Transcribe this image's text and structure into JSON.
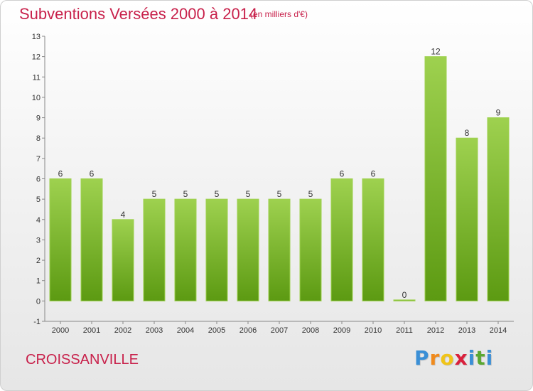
{
  "header": {
    "title": "Subventions Versées 2000 à 2014",
    "unit_note": "(en milliers d'€)"
  },
  "footer": {
    "commune": "CROISSANVILLE",
    "logo_letters": [
      "P",
      "r",
      "o",
      "x",
      "i",
      "t",
      "i"
    ]
  },
  "colors": {
    "title": "#c8214b",
    "bar_top": "#9ed14f",
    "bar_bottom": "#5c9a12",
    "logo": [
      "#3a8fd6",
      "#f08a1c",
      "#f0c419",
      "#d9203c",
      "#3a8fd6",
      "#5aa832",
      "#3a8fd6"
    ]
  },
  "chart_data": {
    "type": "bar",
    "title": "Subventions Versées 2000 à 2014",
    "subtitle": "(en milliers d'€)",
    "xlabel": "",
    "ylabel": "",
    "categories": [
      "2000",
      "2001",
      "2002",
      "2003",
      "2004",
      "2005",
      "2006",
      "2007",
      "2008",
      "2009",
      "2010",
      "2011",
      "2012",
      "2013",
      "2014"
    ],
    "values": [
      6,
      6,
      4,
      5,
      5,
      5,
      5,
      5,
      5,
      6,
      6,
      0,
      12,
      8,
      9
    ],
    "data_labels": [
      "6",
      "6",
      "4",
      "5",
      "5",
      "5",
      "5",
      "5",
      "5",
      "6",
      "6",
      "0",
      "12",
      "8",
      "9"
    ],
    "y_ticks": [
      "-1",
      "0",
      "1",
      "2",
      "3",
      "4",
      "5",
      "6",
      "7",
      "8",
      "9",
      "10",
      "11",
      "12",
      "13"
    ],
    "ylim": [
      -1,
      13
    ],
    "grid": false,
    "legend": "none"
  }
}
